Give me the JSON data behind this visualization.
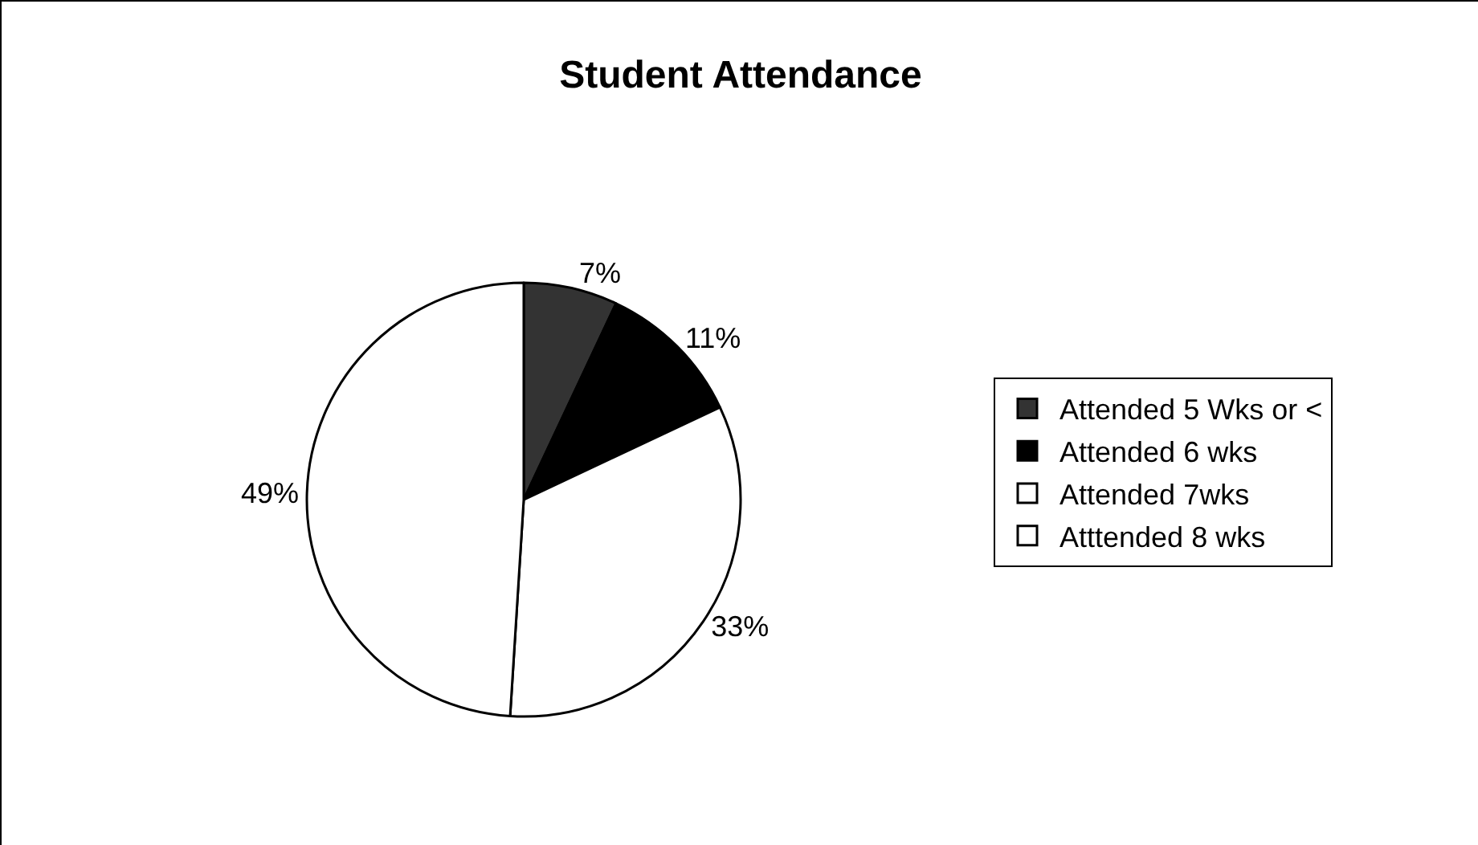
{
  "chart_data": {
    "type": "pie",
    "title": "Student Attendance",
    "categories": [
      "Attended 5 Wks or <",
      "Attended 6 wks",
      "Attended 7wks",
      "Atttended 8 wks"
    ],
    "values": [
      7,
      11,
      33,
      49
    ],
    "colors": [
      "#333333",
      "#000000",
      "#ffffff",
      "#ffffff"
    ],
    "value_labels": [
      "7%",
      "11%",
      "33%",
      "49%"
    ],
    "legend": "right"
  }
}
